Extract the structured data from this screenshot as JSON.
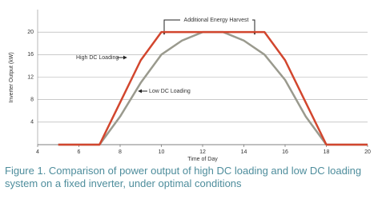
{
  "chart_data": {
    "type": "line",
    "y_label": "Inverter Output (kW)",
    "x_label": "Time of Day",
    "x": [
      5,
      7,
      8,
      9,
      10,
      11,
      12,
      13,
      14,
      15,
      16,
      17,
      18,
      20
    ],
    "series": [
      {
        "name": "High DC Loading",
        "color": "#d2462e",
        "values": [
          0,
          0,
          7.5,
          15,
          20,
          20,
          20,
          20,
          20,
          20,
          15,
          7.5,
          0,
          0
        ]
      },
      {
        "name": "Low DC Loading",
        "color": "#9a9a8e",
        "values": [
          0,
          0,
          5,
          11,
          16,
          18.5,
          20,
          20,
          18.5,
          16,
          11.5,
          5,
          0,
          0
        ]
      }
    ],
    "xlim": [
      4,
      20
    ],
    "xticks": [
      4,
      6,
      8,
      10,
      12,
      14,
      16,
      18,
      20
    ],
    "ylim": [
      0,
      24
    ],
    "yticks": [
      4,
      8,
      12,
      16,
      20
    ],
    "grid": true,
    "annotations": [
      "Additional Energy Harvest",
      "High DC Loading",
      "Low DC Loading"
    ],
    "caption": "Figure 1. Comparison of power output of high DC loading and low DC loading system on a fixed inverter, under optimal conditions"
  }
}
